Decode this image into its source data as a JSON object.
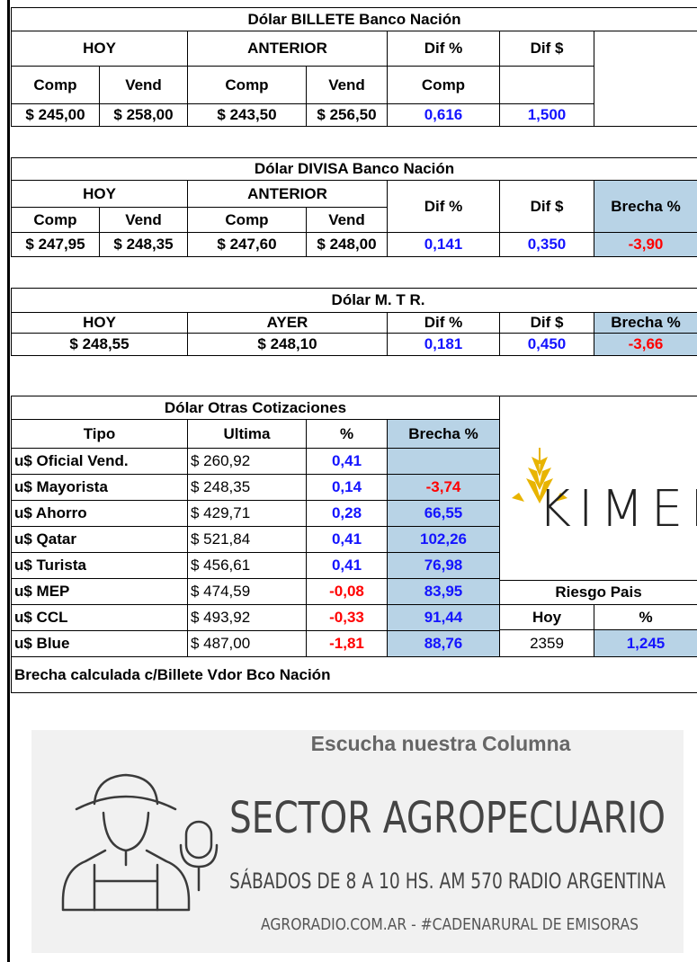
{
  "billete": {
    "title": "Dólar BILLETE Banco Nación",
    "headers": [
      "HOY",
      "ANTERIOR",
      "Dif %",
      "Dif $"
    ],
    "subheaders": [
      "Comp",
      "Vend",
      "Comp",
      "Vend",
      "Comp"
    ],
    "values": [
      "$ 245,00",
      "$ 258,00",
      "$ 243,50",
      "$ 256,50",
      "0,616",
      "1,500"
    ]
  },
  "divisa": {
    "title": "Dólar DIVISA Banco Nación",
    "headers": [
      "HOY",
      "ANTERIOR",
      "Dif %",
      "Dif $",
      "Brecha %"
    ],
    "subheaders": [
      "Comp",
      "Vend",
      "Comp",
      "Vend"
    ],
    "values": [
      "$ 247,95",
      "$ 248,35",
      "$ 247,60",
      "$ 248,00",
      "0,141",
      "0,350",
      "-3,90"
    ]
  },
  "mtr": {
    "title": "Dólar  M.  T  R.",
    "headers": [
      "HOY",
      "AYER",
      "Dif %",
      "Dif $",
      "Brecha %"
    ],
    "values": [
      "$ 248,55",
      "$ 248,10",
      "0,181",
      "0,450",
      "-3,66"
    ]
  },
  "otras": {
    "title": "Dólar Otras Cotizaciones",
    "headers": [
      "Tipo",
      "Ultima",
      "%",
      "Brecha %"
    ],
    "rows": [
      [
        "u$ Oficial Vend.",
        "$ 260,92",
        "0,41"
      ],
      [
        "u$ Mayorista",
        "$ 248,35",
        "0,14",
        "-3,74"
      ],
      [
        "u$ Ahorro",
        "$ 429,71",
        "0,28",
        "66,55"
      ],
      [
        "u$ Qatar",
        "$ 521,84",
        "0,41",
        "102,26"
      ],
      [
        "u$ Turista",
        "$ 456,61",
        "0,41",
        "76,98"
      ],
      [
        "u$ MEP",
        "$ 474,59",
        "-0,08",
        "83,95"
      ],
      [
        "u$ CCL",
        "$ 493,92",
        "-0,33",
        "91,44"
      ],
      [
        "u$ Blue",
        "$ 487,00",
        "-1,81",
        "88,76"
      ]
    ]
  },
  "logo": "KIMEI",
  "riesgo": {
    "title": "Riesgo Pais",
    "headers": [
      "Hoy",
      "%"
    ],
    "values": [
      "2359",
      "1,245"
    ]
  },
  "note": "Brecha calculada c/Billete Vdor Bco Nación",
  "banner": {
    "kicker": "Escucha nuestra Columna",
    "title": "SECTOR AGROPECUARIO",
    "schedule": "SÁBADOS DE 8 A 10 HS.   AM 570 RADIO ARGENTINA",
    "footer": "AGRORADIO.COM.AR  -  #CADENARURAL DE EMISORAS"
  }
}
